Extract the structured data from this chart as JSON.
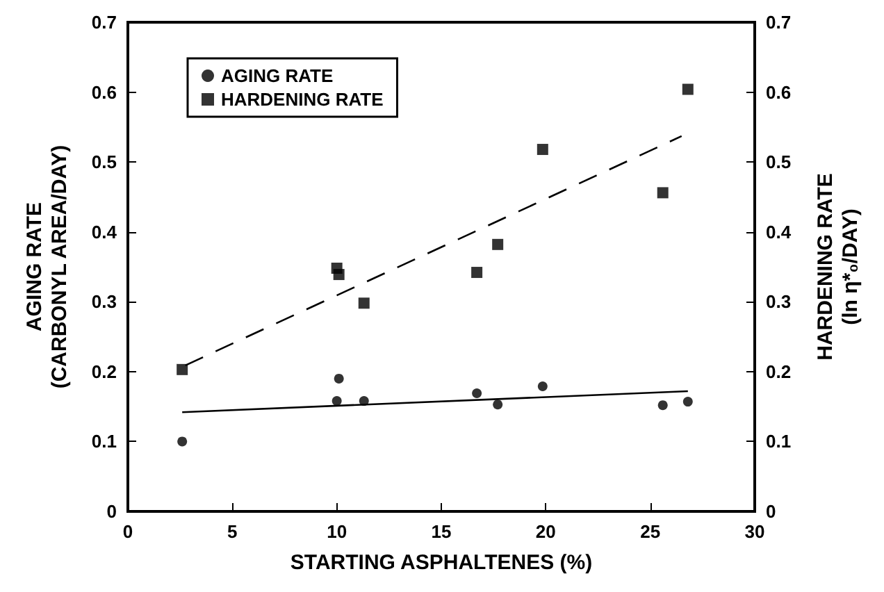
{
  "chart_data": {
    "type": "scatter",
    "xlabel": "STARTING ASPHALTENES (%)",
    "ylabel": "AGING RATE\n(CARBONYL AREA/DAY)",
    "y2label": "HARDENING RATE\n(ln η*₀/DAY)",
    "xlim": [
      0,
      30
    ],
    "xticks": [
      0,
      5,
      10,
      15,
      20,
      25,
      30
    ],
    "ylim": [
      0,
      0.7
    ],
    "yticks": [
      0,
      0.1,
      0.2,
      0.3,
      0.4,
      0.5,
      0.6,
      0.7
    ],
    "y2lim": [
      0,
      0.7
    ],
    "y2ticks": [
      0,
      0.1,
      0.2,
      0.3,
      0.4,
      0.5,
      0.6,
      0.7
    ],
    "grid": false,
    "legend": "top left",
    "series": [
      {
        "name": "AGING RATE",
        "type": "scatter",
        "marker": "circle",
        "color": "#000000",
        "x": [
          2.6,
          10.0,
          10.1,
          11.3,
          16.7,
          17.7,
          19.85,
          25.6,
          26.8
        ],
        "values": [
          0.1,
          0.158,
          0.19,
          0.158,
          0.169,
          0.153,
          0.179,
          0.152,
          0.157
        ]
      },
      {
        "name": "HARDENING RATE",
        "type": "scatter",
        "marker": "square",
        "axis": "y2",
        "color": "#000000",
        "x": [
          2.6,
          10.0,
          10.1,
          11.3,
          16.7,
          17.7,
          19.85,
          25.6,
          26.8
        ],
        "values": [
          0.203,
          0.348,
          0.339,
          0.298,
          0.342,
          0.382,
          0.518,
          0.456,
          0.604
        ]
      },
      {
        "type": "line",
        "marker": "none",
        "line_style": "solid",
        "color": "#000000",
        "x": [
          2.6,
          26.8
        ],
        "values": [
          0.142,
          0.172
        ]
      },
      {
        "type": "line",
        "marker": "none",
        "line_style": "dashed",
        "axis": "y2",
        "color": "#000000",
        "x": [
          2.75,
          26.5
        ],
        "values": [
          0.209,
          0.537
        ]
      }
    ]
  }
}
